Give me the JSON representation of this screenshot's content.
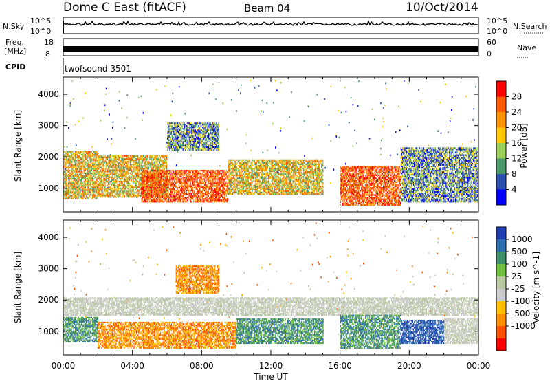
{
  "header": {
    "title": "Dome C East (fitACF)",
    "beam": "Beam 04",
    "date": "10/Oct/2014"
  },
  "aux": {
    "nsky_label": "N.Sky",
    "nsky_ticks": [
      "10^5",
      "10^0"
    ],
    "nsearch_label": "N.Search",
    "nsearch_ticks": [
      "10^5",
      "10^0"
    ],
    "freq_label": "Freq.",
    "freq_unit": "[MHz]",
    "freq_ticks": [
      "18",
      "8"
    ],
    "nave_label": "Nave",
    "nave_ticks": [
      "60",
      "0"
    ],
    "cpid_label": "CPID",
    "cpid_value": "twofsound 3501"
  },
  "chart_data": [
    {
      "type": "heatmap",
      "name": "power",
      "ylabel": "Slant Range [km]",
      "ylim": [
        250,
        4550
      ],
      "yticks": [
        1000,
        2000,
        3000,
        4000
      ],
      "xlim": [
        0,
        24
      ],
      "colorbar": {
        "label": "Power [dB]",
        "ticks": [
          "28",
          "24",
          "20",
          "16",
          "12",
          "8",
          "4"
        ],
        "colors": [
          "#ff0000",
          "#ff5a00",
          "#ff9400",
          "#ffc800",
          "#9bd15a",
          "#4a9a6a",
          "#2a50b0",
          "#0000ff"
        ]
      },
      "bands": [
        {
          "t0": 0.0,
          "t1": 2.0,
          "r0": 650,
          "r1": 2150,
          "level": "mid"
        },
        {
          "t0": 2.0,
          "t1": 6.0,
          "r0": 700,
          "r1": 2050,
          "level": "mid"
        },
        {
          "t0": 4.5,
          "t1": 9.5,
          "r0": 550,
          "r1": 1550,
          "level": "high"
        },
        {
          "t0": 6.0,
          "t1": 9.0,
          "r0": 2200,
          "r1": 3100,
          "level": "low"
        },
        {
          "t0": 9.5,
          "t1": 15.0,
          "r0": 800,
          "r1": 1900,
          "level": "mid"
        },
        {
          "t0": 16.0,
          "t1": 19.5,
          "r0": 450,
          "r1": 1700,
          "level": "high"
        },
        {
          "t0": 19.5,
          "t1": 24.0,
          "r0": 550,
          "r1": 2300,
          "level": "low"
        }
      ]
    },
    {
      "type": "heatmap",
      "name": "velocity",
      "ylabel": "Slant Range [km]",
      "xlabel": "Time UT",
      "ylim": [
        250,
        4550
      ],
      "yticks": [
        1000,
        2000,
        3000,
        4000
      ],
      "xlim": [
        0,
        24
      ],
      "xticks": [
        "00:00",
        "04:00",
        "08:00",
        "12:00",
        "16:00",
        "20:00",
        "00:00"
      ],
      "colorbar": {
        "label": "Velocity [m s^-1]",
        "ticks": [
          "1000",
          "500",
          "100",
          "25",
          "-25",
          "-100",
          "-500",
          "-1000"
        ],
        "colors": [
          "#1f3fb0",
          "#2f6fb0",
          "#3f8f6a",
          "#6fbf3f",
          "#b8c8a0",
          "#cccccc",
          "#ffc000",
          "#ff9000",
          "#ff5000",
          "#ff0000"
        ]
      },
      "bands": [
        {
          "t0": 0.0,
          "t1": 2.0,
          "r0": 650,
          "r1": 1450,
          "level": "toward"
        },
        {
          "t0": 0.0,
          "t1": 24.0,
          "r0": 1500,
          "r1": 2050,
          "level": "zero"
        },
        {
          "t0": 2.0,
          "t1": 10.0,
          "r0": 450,
          "r1": 1300,
          "level": "away"
        },
        {
          "t0": 6.5,
          "t1": 9.0,
          "r0": 2200,
          "r1": 3100,
          "level": "away"
        },
        {
          "t0": 10.0,
          "t1": 15.0,
          "r0": 600,
          "r1": 1400,
          "level": "toward"
        },
        {
          "t0": 16.0,
          "t1": 19.5,
          "r0": 450,
          "r1": 1500,
          "level": "toward"
        },
        {
          "t0": 19.5,
          "t1": 22.0,
          "r0": 600,
          "r1": 1350,
          "level": "strong-toward"
        },
        {
          "t0": 22.0,
          "t1": 24.0,
          "r0": 600,
          "r1": 1400,
          "level": "zero"
        }
      ]
    }
  ]
}
